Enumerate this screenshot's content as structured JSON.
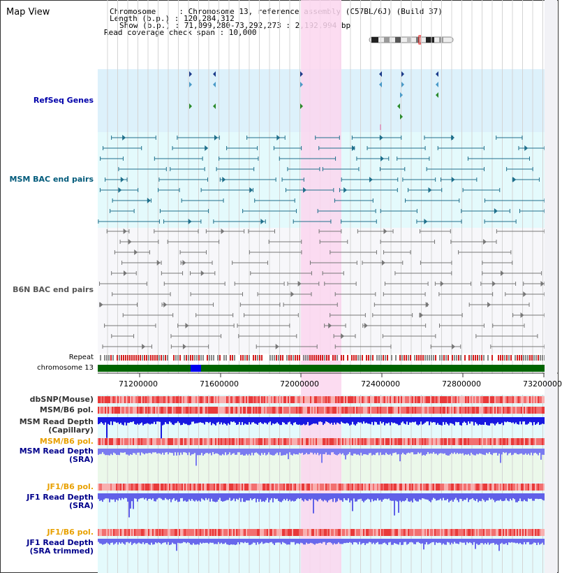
{
  "view": {
    "title": "Map View",
    "header_lines": [
      "Chromosome     : Chromosome 13, reference assembly (C57BL/6J) (Build 37)",
      "Length (b.p.) : 120,284,312",
      "Show (b.p.) : 71,099,280-73,292,273 : 2,192,994 bp",
      "Read coverage check span : 10,000"
    ]
  },
  "tracks": {
    "refseq_label": "RefSeq Genes",
    "msm_bac_label": "MSM BAC end pairs",
    "b6n_bac_label": "B6N BAC end pairs",
    "repeat_label": "Repeat",
    "chromosome_label": "chromosome 13",
    "dbsnp_label": "dbSNP(Mouse)",
    "msm_b6_pol_label": "MSM/B6 pol.",
    "msm_depth_cap_label": "MSM Read Depth\n(Capillary)",
    "msm_b6_pol2_label": "MSM/B6 pol.",
    "msm_depth_sra_label": "MSM Read Depth\n(SRA)",
    "jf1_b6_pol_label": "JF1/B6 pol.",
    "jf1_depth_sra_label": "JF1 Read Depth\n(SRA)",
    "jf1_b6_pol2_label": "JF1/B6 pol.",
    "jf1_depth_trim_label": "JF1 Read Depth\n(SRA trimmed)"
  },
  "axis": {
    "ticks": [
      "71200000",
      "71600000",
      "72000000",
      "72400000",
      "72800000",
      "73200000"
    ]
  },
  "colors": {
    "refseq_bg": "#ddf1fb",
    "msm_bg": "#e4fafc",
    "highlight": "#fbd6ef",
    "refseq_text": "#0000aa",
    "msm_text": "#005a7a",
    "b6n_text": "#555555",
    "orange_text": "#e8a000",
    "blue_text": "#00008b",
    "chromosome_green": "#006400",
    "chromosome_blue": "#0000ee"
  }
}
